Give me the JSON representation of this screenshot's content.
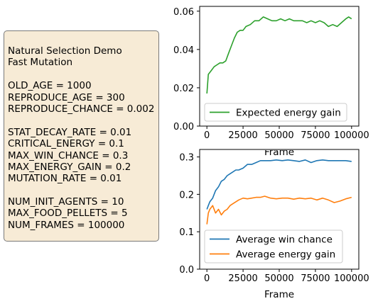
{
  "params_box": {
    "lines": [
      "Natural Selection Demo",
      "Fast Mutation",
      "",
      "OLD_AGE = 1000",
      "REPRODUCE_AGE = 300",
      "REPRODUCE_CHANCE = 0.002",
      "",
      "STAT_DECAY_RATE = 0.01",
      "CRITICAL_ENERGY = 0.1",
      "MAX_WIN_CHANCE = 0.3",
      "MAX_ENERGY_GAIN = 0.2",
      "MUTATION_RATE = 0.01",
      "",
      "NUM_INIT_AGENTS = 10",
      "MAX_FOOD_PELLETS = 5",
      "NUM_FRAMES = 100000"
    ]
  },
  "chart_data": [
    {
      "type": "line",
      "xlabel": "Frame",
      "ylabel": "",
      "xlim": [
        -5000,
        105000
      ],
      "ylim": [
        0,
        0.0625
      ],
      "xticks": [
        "0",
        "25000",
        "50000",
        "75000",
        "100000"
      ],
      "yticks": [
        "0.00",
        "0.02",
        "0.04",
        "0.06"
      ],
      "legend_position": "bottom-right",
      "series": [
        {
          "name": "Expected energy gain",
          "color": "#2ca02c",
          "x": [
            0,
            1000,
            2000,
            3000,
            5000,
            7000,
            9000,
            11000,
            13000,
            15000,
            17000,
            19000,
            21000,
            23000,
            25000,
            27000,
            30000,
            33000,
            36000,
            39000,
            42000,
            45000,
            48000,
            51000,
            54000,
            57000,
            60000,
            63000,
            66000,
            69000,
            72000,
            75000,
            78000,
            81000,
            84000,
            87000,
            90000,
            93000,
            96000,
            98000,
            100000
          ],
          "y": [
            0.017,
            0.027,
            0.028,
            0.029,
            0.031,
            0.032,
            0.033,
            0.033,
            0.034,
            0.038,
            0.042,
            0.046,
            0.049,
            0.05,
            0.05,
            0.052,
            0.053,
            0.055,
            0.055,
            0.057,
            0.056,
            0.055,
            0.055,
            0.056,
            0.055,
            0.056,
            0.055,
            0.055,
            0.055,
            0.054,
            0.055,
            0.054,
            0.055,
            0.054,
            0.052,
            0.053,
            0.052,
            0.054,
            0.056,
            0.057,
            0.056
          ]
        }
      ]
    },
    {
      "type": "line",
      "xlabel": "Frame",
      "ylabel": "",
      "xlim": [
        -5000,
        105000
      ],
      "ylim": [
        0,
        0.32
      ],
      "xticks": [
        "0",
        "25000",
        "50000",
        "75000",
        "100000"
      ],
      "yticks": [
        "0.0",
        "0.1",
        "0.2",
        "0.3"
      ],
      "legend_position": "bottom-right",
      "series": [
        {
          "name": "Average win chance",
          "color": "#1f77b4",
          "x": [
            0,
            1000,
            2000,
            4000,
            6000,
            8000,
            10000,
            12000,
            14000,
            16000,
            18000,
            20000,
            22000,
            25000,
            28000,
            31000,
            34000,
            37000,
            40000,
            44000,
            48000,
            52000,
            56000,
            60000,
            64000,
            68000,
            72000,
            76000,
            80000,
            84000,
            88000,
            92000,
            96000,
            100000
          ],
          "y": [
            0.16,
            0.17,
            0.18,
            0.19,
            0.21,
            0.22,
            0.235,
            0.24,
            0.25,
            0.255,
            0.26,
            0.265,
            0.265,
            0.27,
            0.28,
            0.28,
            0.285,
            0.29,
            0.29,
            0.29,
            0.292,
            0.29,
            0.292,
            0.29,
            0.288,
            0.292,
            0.285,
            0.29,
            0.292,
            0.29,
            0.29,
            0.29,
            0.29,
            0.288
          ]
        },
        {
          "name": "Average energy gain",
          "color": "#ff7f0e",
          "x": [
            0,
            1000,
            2000,
            4000,
            6000,
            8000,
            10000,
            12000,
            14000,
            16000,
            18000,
            20000,
            22000,
            25000,
            28000,
            31000,
            34000,
            37000,
            40000,
            44000,
            48000,
            52000,
            56000,
            60000,
            64000,
            68000,
            72000,
            76000,
            80000,
            84000,
            88000,
            92000,
            96000,
            100000
          ],
          "y": [
            0.12,
            0.15,
            0.16,
            0.17,
            0.15,
            0.16,
            0.145,
            0.155,
            0.16,
            0.17,
            0.175,
            0.18,
            0.185,
            0.19,
            0.188,
            0.19,
            0.192,
            0.192,
            0.195,
            0.19,
            0.188,
            0.19,
            0.19,
            0.187,
            0.19,
            0.188,
            0.19,
            0.185,
            0.19,
            0.185,
            0.178,
            0.182,
            0.188,
            0.192
          ]
        }
      ]
    }
  ]
}
